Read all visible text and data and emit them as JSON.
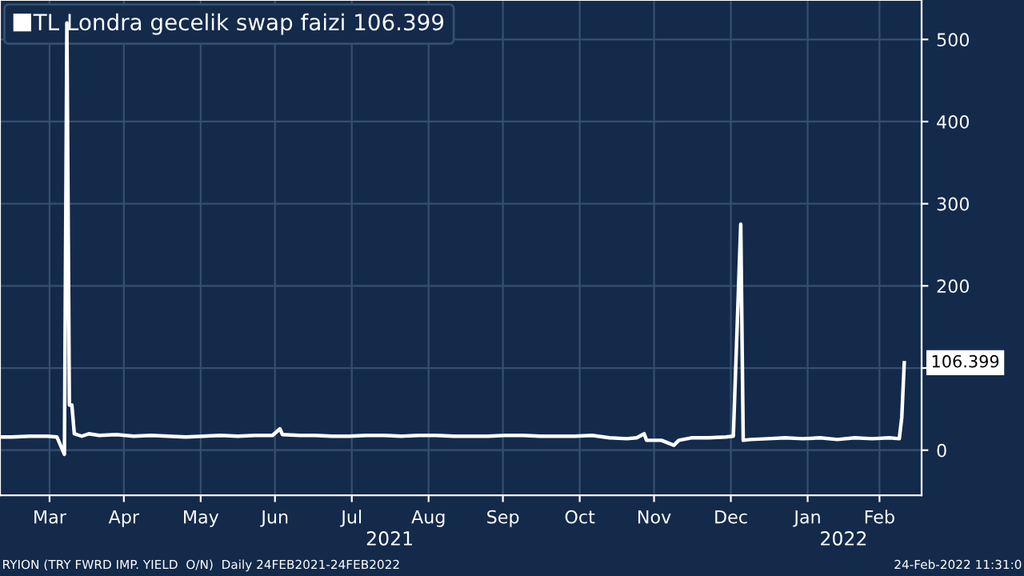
{
  "chart_data": {
    "type": "line",
    "x": [
      "2021-02-24",
      "2021-03-01",
      "2021-03-08",
      "2021-03-15",
      "2021-03-19",
      "2021-03-22",
      "2021-03-23",
      "2021-03-24",
      "2021-03-25",
      "2021-03-26",
      "2021-03-29",
      "2021-04-01",
      "2021-04-05",
      "2021-04-12",
      "2021-04-19",
      "2021-04-26",
      "2021-05-03",
      "2021-05-10",
      "2021-05-17",
      "2021-05-24",
      "2021-05-31",
      "2021-06-07",
      "2021-06-14",
      "2021-06-17",
      "2021-06-18",
      "2021-06-25",
      "2021-07-01",
      "2021-07-08",
      "2021-07-15",
      "2021-07-22",
      "2021-07-29",
      "2021-08-05",
      "2021-08-12",
      "2021-08-19",
      "2021-08-26",
      "2021-09-02",
      "2021-09-09",
      "2021-09-16",
      "2021-09-23",
      "2021-09-30",
      "2021-10-07",
      "2021-10-14",
      "2021-10-21",
      "2021-10-28",
      "2021-11-04",
      "2021-11-08",
      "2021-11-11",
      "2021-11-12",
      "2021-11-18",
      "2021-11-23",
      "2021-11-25",
      "2021-11-30",
      "2021-12-07",
      "2021-12-14",
      "2021-12-17",
      "2021-12-20",
      "2021-12-21",
      "2021-12-24",
      "2021-12-31",
      "2022-01-07",
      "2022-01-14",
      "2022-01-21",
      "2022-01-28",
      "2022-02-04",
      "2022-02-11",
      "2022-02-18",
      "2022-02-22",
      "2022-02-23",
      "2022-02-24"
    ],
    "series": [
      {
        "name": "TL Londra gecelik swap faizi 106.399",
        "color": "#ffffff",
        "values": [
          16,
          16,
          17,
          17,
          16,
          -5,
          520,
          55,
          55,
          20,
          17,
          20,
          18,
          19,
          17,
          18,
          17,
          16,
          17,
          18,
          17,
          18,
          18,
          26,
          19,
          18,
          18,
          17,
          17,
          18,
          18,
          17,
          18,
          18,
          17,
          17,
          17,
          18,
          18,
          17,
          17,
          17,
          18,
          15,
          14,
          15,
          20,
          12,
          12,
          6,
          12,
          15,
          15,
          16,
          17,
          275,
          12,
          13,
          14,
          15,
          14,
          15,
          13,
          15,
          14,
          15,
          14,
          40,
          106.399
        ]
      }
    ],
    "xlim": [
      "2021-02-24",
      "2022-03-03"
    ],
    "xticks": [
      {
        "value": "2021-03-16",
        "label": "Mar"
      },
      {
        "value": "2021-04-15",
        "label": "Apr"
      },
      {
        "value": "2021-05-16",
        "label": "May"
      },
      {
        "value": "2021-06-15",
        "label": "Jun"
      },
      {
        "value": "2021-07-16",
        "label": "Jul"
      },
      {
        "value": "2021-08-16",
        "label": "Aug"
      },
      {
        "value": "2021-09-15",
        "label": "Sep"
      },
      {
        "value": "2021-10-16",
        "label": "Oct"
      },
      {
        "value": "2021-11-15",
        "label": "Nov"
      },
      {
        "value": "2021-12-16",
        "label": "Dec"
      },
      {
        "value": "2022-01-16",
        "label": "Jan"
      },
      {
        "value": "2022-02-14",
        "label": "Feb"
      }
    ],
    "ylim": [
      -55,
      548
    ],
    "yticks": [
      0,
      {
        "value": 100,
        "label": null
      },
      200,
      300,
      400,
      500
    ],
    "grid": true,
    "legend": "top left",
    "annotations": [
      "2021",
      "2022",
      {
        "text": "106.399",
        "x": "2022-02-24",
        "y": 106.399
      },
      "RYION (TRY FWRD IMP. YIELD  O/N)  Daily 24FEB2021-24FEB2022",
      "24-Feb-2022 11:31:0"
    ]
  }
}
